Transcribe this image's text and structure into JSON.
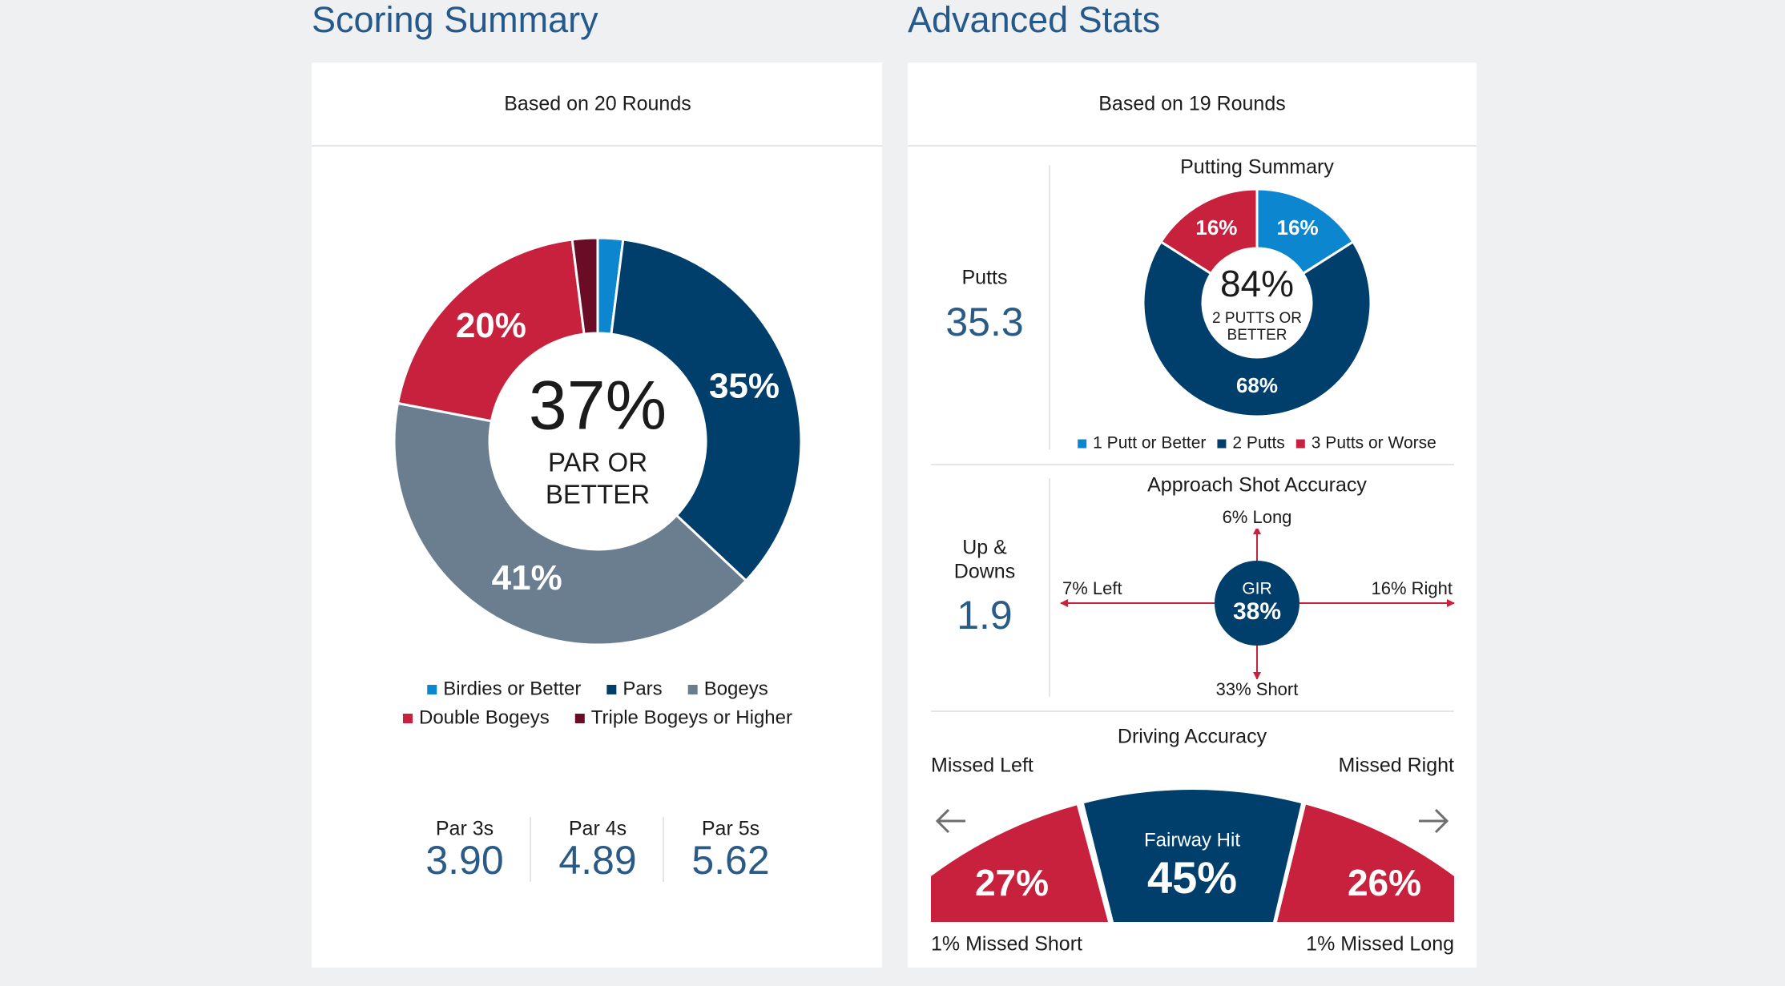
{
  "scoring_summary": {
    "title": "Scoring Summary",
    "subtitle": "Based on 20 Rounds",
    "chart": {
      "type": "donut",
      "categories": [
        "Birdies or Better",
        "Pars",
        "Bogeys",
        "Double Bogeys",
        "Triple Bogeys or Higher"
      ],
      "colors": [
        "#0b86cf",
        "#003f6b",
        "#6a7e90",
        "#c8213d",
        "#6a0c25"
      ],
      "values": [
        2,
        35,
        41,
        20,
        2
      ],
      "value_labels": [
        null,
        "35%",
        "41%",
        "20%",
        null
      ],
      "center_value": "37%",
      "center_caption": [
        "PAR OR",
        "BETTER"
      ]
    },
    "par_averages": [
      {
        "label": "Par 3s",
        "value": "3.90"
      },
      {
        "label": "Par 4s",
        "value": "4.89"
      },
      {
        "label": "Par 5s",
        "value": "5.62"
      }
    ]
  },
  "advanced_stats": {
    "title": "Advanced Stats",
    "subtitle": "Based on 19 Rounds",
    "putts": {
      "label": "Putts",
      "value": "35.3"
    },
    "up_and_downs": {
      "label": [
        "Up &",
        "Downs"
      ],
      "value": "1.9"
    },
    "putting_summary": {
      "title": "Putting Summary",
      "type": "donut",
      "categories": [
        "1 Putt or Better",
        "2 Putts",
        "3 Putts or Worse"
      ],
      "colors": [
        "#0b86cf",
        "#003f6b",
        "#c8213d"
      ],
      "values": [
        16,
        68,
        16
      ],
      "value_labels": [
        "16%",
        "68%",
        "16%"
      ],
      "center_value": "84%",
      "center_caption": [
        "2 PUTTS OR",
        "BETTER"
      ]
    },
    "approach_shot_accuracy": {
      "title": "Approach Shot Accuracy",
      "center_label": "GIR",
      "center_value": "38%",
      "long": "6% Long",
      "left": "7% Left",
      "right": "16% Right",
      "short": "33% Short"
    },
    "driving_accuracy": {
      "title": "Driving Accuracy",
      "missed_left_label": "Missed Left",
      "missed_right_label": "Missed Right",
      "missed_left": "27%",
      "fairway_hit_label": "Fairway Hit",
      "fairway_hit": "45%",
      "missed_right": "26%",
      "missed_short": "1% Missed Short",
      "missed_long": "1% Missed Long"
    }
  }
}
